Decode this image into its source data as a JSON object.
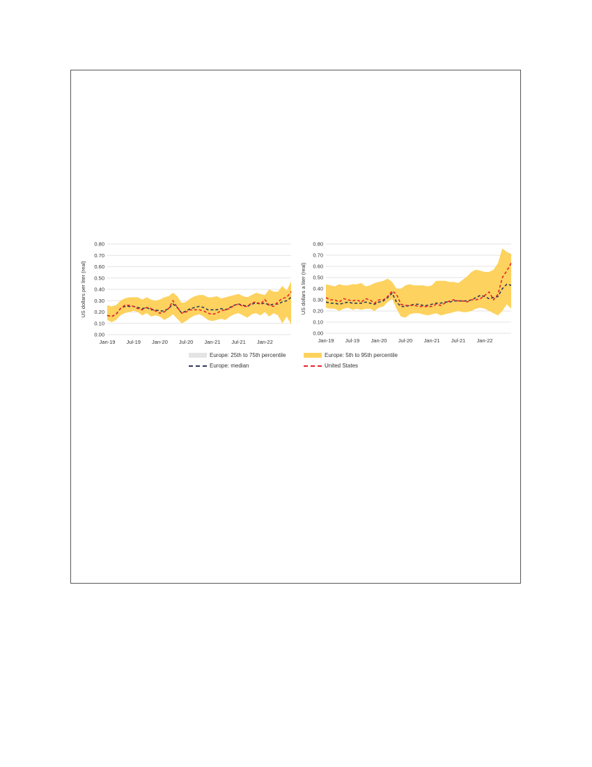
{
  "colors": {
    "band_5_95": "#FDD25E",
    "band_25_75": "#E4E4E4",
    "median": "#2F3A5A",
    "us": "#E8222A",
    "grid": "#DADADA"
  },
  "legend": {
    "items": [
      {
        "label": "Europe: 25th to 75th percentile",
        "style": "swatch",
        "color_key": "band_25_75"
      },
      {
        "label": "Europe: 5th to 95th percentile",
        "style": "swatch",
        "color_key": "band_5_95"
      },
      {
        "label": "Europe: median",
        "style": "dash",
        "color_key": "median"
      },
      {
        "label": "United States",
        "style": "dash",
        "color_key": "us"
      }
    ]
  },
  "chart_data": [
    {
      "type": "area",
      "title": "",
      "xlabel": "",
      "ylabel": "US dollars per liter (real)",
      "ylim": [
        0,
        0.8
      ],
      "yticks": [
        "0.00",
        "0.10",
        "0.20",
        "0.30",
        "0.40",
        "0.50",
        "0.60",
        "0.70",
        "0.80"
      ],
      "x_tick_labels": [
        {
          "index": 0,
          "label": "Jan-19"
        },
        {
          "index": 6,
          "label": "Jul-19"
        },
        {
          "index": 12,
          "label": "Jan-20"
        },
        {
          "index": 18,
          "label": "Jul-20"
        },
        {
          "index": 24,
          "label": "Jan-21"
        },
        {
          "index": 30,
          "label": "Jul-21"
        },
        {
          "index": 36,
          "label": "Jan-22"
        }
      ],
      "grid": true,
      "series": [
        {
          "name": "Europe: 5th to 95th percentile",
          "kind": "band",
          "low": [
            0.13,
            0.11,
            0.13,
            0.17,
            0.19,
            0.2,
            0.21,
            0.2,
            0.17,
            0.19,
            0.16,
            0.17,
            0.16,
            0.13,
            0.15,
            0.18,
            0.14,
            0.1,
            0.12,
            0.15,
            0.17,
            0.18,
            0.16,
            0.13,
            0.12,
            0.13,
            0.14,
            0.13,
            0.16,
            0.18,
            0.19,
            0.17,
            0.15,
            0.18,
            0.19,
            0.17,
            0.2,
            0.16,
            0.19,
            0.17,
            0.1,
            0.16,
            0.09
          ],
          "high": [
            0.26,
            0.25,
            0.26,
            0.3,
            0.32,
            0.33,
            0.33,
            0.33,
            0.31,
            0.33,
            0.31,
            0.3,
            0.31,
            0.33,
            0.34,
            0.37,
            0.34,
            0.28,
            0.29,
            0.32,
            0.34,
            0.35,
            0.35,
            0.33,
            0.33,
            0.34,
            0.32,
            0.33,
            0.34,
            0.35,
            0.36,
            0.34,
            0.33,
            0.35,
            0.37,
            0.36,
            0.35,
            0.4,
            0.38,
            0.38,
            0.43,
            0.39,
            0.47
          ]
        },
        {
          "name": "Europe: 25th to 75th percentile",
          "kind": "band",
          "low": [
            0.15,
            0.14,
            0.16,
            0.21,
            0.23,
            0.23,
            0.24,
            0.22,
            0.21,
            0.22,
            0.2,
            0.2,
            0.19,
            0.18,
            0.2,
            0.23,
            0.21,
            0.16,
            0.18,
            0.2,
            0.21,
            0.22,
            0.21,
            0.19,
            0.19,
            0.19,
            0.2,
            0.19,
            0.21,
            0.23,
            0.24,
            0.23,
            0.22,
            0.24,
            0.25,
            0.24,
            0.25,
            0.22,
            0.23,
            0.23,
            0.24,
            0.25,
            0.26
          ],
          "high": [
            0.19,
            0.18,
            0.2,
            0.25,
            0.27,
            0.27,
            0.27,
            0.26,
            0.25,
            0.26,
            0.24,
            0.24,
            0.23,
            0.23,
            0.25,
            0.29,
            0.26,
            0.21,
            0.23,
            0.25,
            0.26,
            0.27,
            0.27,
            0.24,
            0.24,
            0.25,
            0.25,
            0.25,
            0.27,
            0.28,
            0.29,
            0.28,
            0.27,
            0.29,
            0.3,
            0.29,
            0.3,
            0.29,
            0.3,
            0.3,
            0.32,
            0.33,
            0.35
          ]
        },
        {
          "name": "Europe: median",
          "kind": "line",
          "values": [
            0.17,
            0.16,
            0.18,
            0.23,
            0.25,
            0.25,
            0.25,
            0.24,
            0.23,
            0.24,
            0.22,
            0.22,
            0.21,
            0.21,
            0.23,
            0.27,
            0.24,
            0.19,
            0.21,
            0.23,
            0.24,
            0.25,
            0.24,
            0.22,
            0.22,
            0.22,
            0.23,
            0.22,
            0.24,
            0.26,
            0.27,
            0.26,
            0.25,
            0.27,
            0.28,
            0.27,
            0.28,
            0.26,
            0.27,
            0.27,
            0.29,
            0.3,
            0.33
          ]
        },
        {
          "name": "United States",
          "kind": "line",
          "values": [
            0.17,
            0.16,
            0.18,
            0.23,
            0.26,
            0.26,
            0.25,
            0.23,
            0.22,
            0.24,
            0.23,
            0.21,
            0.19,
            0.2,
            0.23,
            0.3,
            0.24,
            0.19,
            0.2,
            0.22,
            0.22,
            0.22,
            0.21,
            0.19,
            0.18,
            0.19,
            0.21,
            0.22,
            0.23,
            0.26,
            0.27,
            0.25,
            0.25,
            0.28,
            0.29,
            0.27,
            0.31,
            0.26,
            0.25,
            0.29,
            0.32,
            0.33,
            0.38
          ]
        }
      ]
    },
    {
      "type": "area",
      "title": "",
      "xlabel": "",
      "ylabel": "US dollars a liter (real)",
      "ylim": [
        0,
        0.8
      ],
      "yticks": [
        "0.00",
        "0.10",
        "0.20",
        "0.30",
        "0.40",
        "0.50",
        "0.60",
        "0.70",
        "0.80"
      ],
      "x_tick_labels": [
        {
          "index": 0,
          "label": "Jan-19"
        },
        {
          "index": 6,
          "label": "Jul-19"
        },
        {
          "index": 12,
          "label": "Jan-20"
        },
        {
          "index": 18,
          "label": "Jul-20"
        },
        {
          "index": 24,
          "label": "Jan-21"
        },
        {
          "index": 30,
          "label": "Jul-21"
        },
        {
          "index": 36,
          "label": "Jan-22"
        }
      ],
      "grid": true,
      "series": [
        {
          "name": "Europe: 5th to 95th percentile",
          "kind": "band",
          "low": [
            0.23,
            0.22,
            0.22,
            0.2,
            0.22,
            0.23,
            0.21,
            0.22,
            0.21,
            0.22,
            0.22,
            0.2,
            0.23,
            0.24,
            0.28,
            0.31,
            0.22,
            0.15,
            0.14,
            0.17,
            0.18,
            0.18,
            0.17,
            0.16,
            0.17,
            0.18,
            0.16,
            0.17,
            0.18,
            0.19,
            0.2,
            0.19,
            0.19,
            0.2,
            0.22,
            0.23,
            0.22,
            0.2,
            0.18,
            0.16,
            0.2,
            0.26,
            0.22
          ],
          "high": [
            0.44,
            0.43,
            0.42,
            0.44,
            0.43,
            0.43,
            0.44,
            0.44,
            0.45,
            0.42,
            0.43,
            0.45,
            0.46,
            0.47,
            0.49,
            0.46,
            0.4,
            0.4,
            0.43,
            0.44,
            0.43,
            0.43,
            0.43,
            0.42,
            0.43,
            0.47,
            0.47,
            0.47,
            0.46,
            0.46,
            0.45,
            0.48,
            0.51,
            0.55,
            0.57,
            0.56,
            0.55,
            0.55,
            0.57,
            0.63,
            0.76,
            0.73,
            0.71
          ]
        },
        {
          "name": "Europe: 25th to 75th percentile",
          "kind": "band",
          "low": [
            0.26,
            0.25,
            0.25,
            0.24,
            0.25,
            0.26,
            0.25,
            0.25,
            0.25,
            0.25,
            0.25,
            0.24,
            0.26,
            0.27,
            0.3,
            0.34,
            0.26,
            0.21,
            0.21,
            0.22,
            0.23,
            0.23,
            0.22,
            0.22,
            0.22,
            0.23,
            0.23,
            0.24,
            0.24,
            0.25,
            0.26,
            0.26,
            0.26,
            0.27,
            0.29,
            0.31,
            0.3,
            0.28,
            0.28,
            0.28,
            0.33,
            0.38,
            0.37
          ],
          "high": [
            0.31,
            0.3,
            0.3,
            0.29,
            0.3,
            0.3,
            0.29,
            0.3,
            0.29,
            0.3,
            0.3,
            0.29,
            0.31,
            0.32,
            0.35,
            0.38,
            0.31,
            0.27,
            0.27,
            0.28,
            0.29,
            0.29,
            0.28,
            0.29,
            0.3,
            0.31,
            0.32,
            0.33,
            0.32,
            0.33,
            0.33,
            0.33,
            0.33,
            0.34,
            0.36,
            0.38,
            0.37,
            0.35,
            0.36,
            0.38,
            0.44,
            0.47,
            0.46
          ]
        },
        {
          "name": "Europe: median",
          "kind": "line",
          "values": [
            0.28,
            0.27,
            0.27,
            0.26,
            0.27,
            0.28,
            0.27,
            0.27,
            0.27,
            0.28,
            0.27,
            0.26,
            0.28,
            0.29,
            0.32,
            0.36,
            0.28,
            0.24,
            0.24,
            0.25,
            0.26,
            0.26,
            0.25,
            0.25,
            0.26,
            0.27,
            0.27,
            0.28,
            0.28,
            0.29,
            0.29,
            0.29,
            0.29,
            0.3,
            0.32,
            0.34,
            0.33,
            0.31,
            0.32,
            0.33,
            0.4,
            0.44,
            0.43
          ]
        },
        {
          "name": "United States",
          "kind": "line",
          "values": [
            0.32,
            0.3,
            0.3,
            0.28,
            0.31,
            0.3,
            0.29,
            0.3,
            0.28,
            0.31,
            0.3,
            0.27,
            0.3,
            0.3,
            0.33,
            0.38,
            0.35,
            0.26,
            0.25,
            0.25,
            0.25,
            0.24,
            0.24,
            0.24,
            0.24,
            0.26,
            0.25,
            0.27,
            0.29,
            0.3,
            0.29,
            0.29,
            0.28,
            0.3,
            0.3,
            0.31,
            0.34,
            0.37,
            0.3,
            0.35,
            0.5,
            0.56,
            0.63
          ]
        }
      ]
    }
  ]
}
